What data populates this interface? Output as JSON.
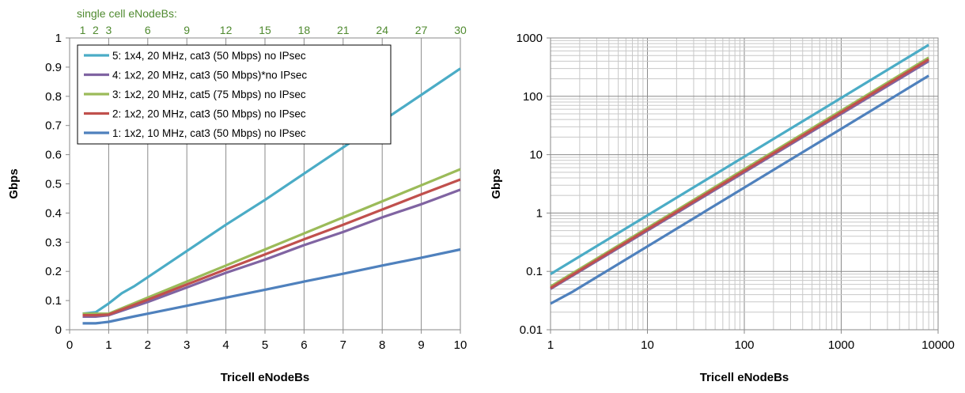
{
  "chart_data": [
    {
      "type": "line",
      "xlabel": "Tricell eNodeBs",
      "ylabel": "Gbps",
      "xlim": [
        0,
        10
      ],
      "ylim": [
        0,
        1
      ],
      "x_ticks": [
        "0",
        "1",
        "2",
        "3",
        "4",
        "5",
        "6",
        "7",
        "8",
        "9",
        "10"
      ],
      "y_ticks": [
        "0",
        "0.1",
        "0.2",
        "0.3",
        "0.4",
        "0.5",
        "0.6",
        "0.7",
        "0.8",
        "0.9",
        "1"
      ],
      "secondary_x_axis": {
        "label": "single cell eNodeBs:",
        "ticks": [
          "1",
          "2",
          "3",
          "6",
          "9",
          "12",
          "15",
          "18",
          "21",
          "24",
          "27",
          "30"
        ],
        "color": "#4f8a2f"
      },
      "grid": "vertical",
      "legend_position": "top-left",
      "series": [
        {
          "name": "5: 1x4, 20 MHz, cat3 (50 Mbps)  no IPsec",
          "color": "#4bacc6",
          "x": [
            0.333,
            0.667,
            1,
            1.333,
            1.667,
            2,
            3,
            4,
            5,
            6,
            7,
            8,
            9,
            10
          ],
          "y": [
            0.055,
            0.06,
            0.09,
            0.125,
            0.15,
            0.18,
            0.27,
            0.36,
            0.445,
            0.535,
            0.625,
            0.715,
            0.805,
            0.895
          ]
        },
        {
          "name": "4: 1x2, 20 MHz, cat3 (50 Mbps)*no IPsec",
          "color": "#8064a2",
          "x": [
            0.333,
            0.667,
            1,
            2,
            3,
            4,
            5,
            6,
            7,
            8,
            9,
            10
          ],
          "y": [
            0.045,
            0.045,
            0.05,
            0.095,
            0.145,
            0.195,
            0.24,
            0.29,
            0.335,
            0.385,
            0.43,
            0.48
          ]
        },
        {
          "name": "3: 1x2, 20 MHz, cat5 (75 Mbps)  no IPsec",
          "color": "#9bbb59",
          "x": [
            0.333,
            0.667,
            1,
            2,
            3,
            4,
            5,
            6,
            7,
            8,
            9,
            10
          ],
          "y": [
            0.055,
            0.055,
            0.055,
            0.11,
            0.165,
            0.22,
            0.275,
            0.33,
            0.385,
            0.44,
            0.495,
            0.55
          ]
        },
        {
          "name": "2: 1x2, 20 MHz, cat3 (50 Mbps)  no IPsec",
          "color": "#c0504d",
          "x": [
            0.333,
            0.667,
            1,
            2,
            3,
            4,
            5,
            6,
            7,
            8,
            9,
            10
          ],
          "y": [
            0.05,
            0.05,
            0.052,
            0.103,
            0.155,
            0.207,
            0.258,
            0.31,
            0.36,
            0.412,
            0.464,
            0.515
          ]
        },
        {
          "name": "1: 1x2, 10 MHz, cat3 (50 Mbps)  no IPsec",
          "color": "#4f81bd",
          "x": [
            0.333,
            0.667,
            1,
            1.667,
            2,
            3,
            4,
            5,
            6,
            7,
            8,
            9,
            10
          ],
          "y": [
            0.022,
            0.022,
            0.027,
            0.046,
            0.055,
            0.082,
            0.11,
            0.137,
            0.165,
            0.192,
            0.22,
            0.247,
            0.275
          ]
        }
      ]
    },
    {
      "type": "line",
      "xlabel": "Tricell eNodeBs",
      "ylabel": "Gbps",
      "x_scale": "log",
      "y_scale": "log",
      "xlim": [
        1,
        10000
      ],
      "ylim": [
        0.01,
        1000
      ],
      "x_ticks": [
        "1",
        "10",
        "100",
        "1000",
        "10000"
      ],
      "y_ticks": [
        "0.01",
        "0.1",
        "1",
        "10",
        "100",
        "1000"
      ],
      "grid": "both, minor log grid",
      "series": [
        {
          "name": "5",
          "color": "#4bacc6",
          "x": [
            1,
            8000
          ],
          "y": [
            0.09,
            760
          ]
        },
        {
          "name": "3",
          "color": "#9bbb59",
          "x": [
            1,
            8000
          ],
          "y": [
            0.055,
            460
          ]
        },
        {
          "name": "4",
          "color": "#8064a2",
          "x": [
            1,
            8000
          ],
          "y": [
            0.05,
            400
          ]
        },
        {
          "name": "2",
          "color": "#c0504d",
          "x": [
            1,
            8000
          ],
          "y": [
            0.052,
            430
          ]
        },
        {
          "name": "1",
          "color": "#4f81bd",
          "x": [
            1,
            1.7,
            8000
          ],
          "y": [
            0.028,
            0.045,
            225
          ]
        }
      ]
    }
  ]
}
